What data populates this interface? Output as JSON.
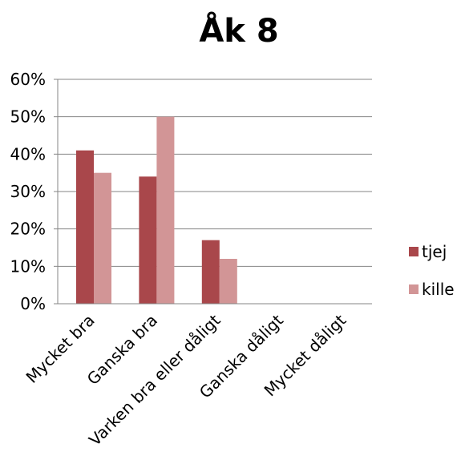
{
  "chart_data": {
    "type": "bar",
    "title": "Åk 8",
    "categories": [
      "Mycket bra",
      "Ganska bra",
      "Varken bra eller dåligt",
      "Ganska dåligt",
      "Mycket dåligt"
    ],
    "series": [
      {
        "name": "tjej",
        "color": "#a9474b",
        "values": [
          0.41,
          0.34,
          0.17,
          0,
          0
        ]
      },
      {
        "name": "kille",
        "color": "#d29596",
        "values": [
          0.35,
          0.5,
          0.12,
          0,
          0
        ]
      }
    ],
    "ylim": [
      0,
      0.6
    ],
    "yticks": [
      0,
      0.1,
      0.2,
      0.3,
      0.4,
      0.5,
      0.6
    ],
    "ytick_labels": [
      "0%",
      "10%",
      "20%",
      "30%",
      "40%",
      "50%",
      "60%"
    ],
    "grid": true,
    "legend_position": "right"
  }
}
